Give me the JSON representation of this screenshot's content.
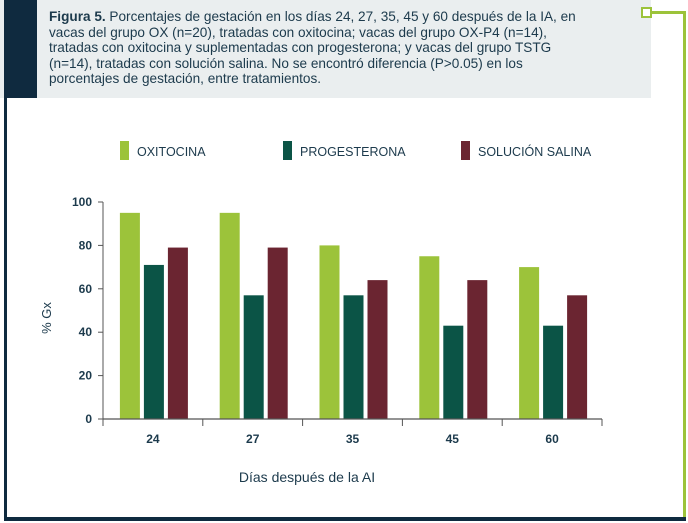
{
  "caption": {
    "label": "Figura 5.",
    "text": " Porcentajes de gestación en los días 24, 27, 35, 45 y 60 después de la IA,  en vacas  del grupo OX (n=20), tratadas con oxitocina; vacas del grupo OX-P4 (n=14), tratadas con oxitocina y suplementadas con progesterona; y vacas del grupo TSTG (n=14), tratadas con solución salina. No se  encontró diferencia (P>0.05) en los porcentajes de gestación, entre tratamientos."
  },
  "colors": {
    "oxitocina": "#9cc33a",
    "progesterona": "#0b5446",
    "salina": "#6b2531",
    "frame_dark": "#0f2a3f",
    "frame_green": "#9cc33a"
  },
  "chart_data": {
    "type": "bar",
    "categories": [
      "24",
      "27",
      "35",
      "45",
      "60"
    ],
    "series": [
      {
        "name": "OXITOCINA",
        "color": "#9cc33a",
        "values": [
          95,
          95,
          80,
          75,
          70
        ]
      },
      {
        "name": "PROGESTERONA",
        "color": "#0b5446",
        "values": [
          71,
          57,
          57,
          43,
          43
        ]
      },
      {
        "name": "SOLUCIÓN SALINA",
        "color": "#6b2531",
        "values": [
          79,
          79,
          64,
          64,
          57
        ]
      }
    ],
    "xlabel": "Días después de la AI",
    "ylabel": "% Gx",
    "ylim": [
      0,
      100
    ],
    "yticks": [
      0,
      20,
      40,
      60,
      80,
      100
    ],
    "grid": false,
    "legend_position": "top"
  }
}
